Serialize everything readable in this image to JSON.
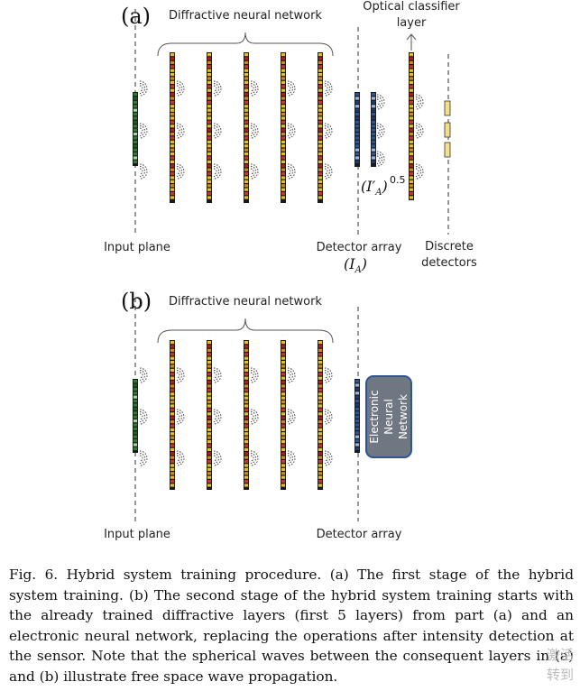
{
  "panel_a": {
    "tag": "(a)",
    "dnn_label": "Diffractive neural network",
    "classifier_label": [
      "Optical classifier",
      "layer"
    ],
    "input_label": "Input plane",
    "detector_label": "Detector array",
    "detector_symbol": "(I",
    "detector_symbol_sub": "A",
    "detector_symbol_close": ")",
    "sqrt_symbol": "(I′",
    "sqrt_symbol_sub": "A",
    "sqrt_symbol_close": ")",
    "sqrt_exponent": "0.5",
    "discrete_label": [
      "Discrete",
      "detectors"
    ]
  },
  "panel_b": {
    "tag": "(b)",
    "dnn_label": "Diffractive neural network",
    "input_label": "Input plane",
    "detector_label": "Detector array",
    "nn_label": [
      "Electronic",
      "Neural",
      "Network"
    ]
  },
  "colors": {
    "input_layer": "#2e7d32",
    "diffractive_a": "#e3c020",
    "diffractive_b": "#b71c1c",
    "detector": "#2f5597",
    "detector_light": "#9db6dd",
    "discrete_fill": "#f2e08a",
    "nn_box": "#6f7782"
  },
  "caption": "Fig. 6.    Hybrid system training procedure. (a) The first stage of the hybrid system training. (b) The second stage of the hybrid system training starts with the already trained diffractive layers (first 5 layers) from part (a) and an electronic neural network, replacing the operations after intensity detection at the sensor. Note that the spherical waves between the consequent layers in (a) and (b) illustrate free space wave propagation.",
  "watermark": [
    "激活",
    "转到"
  ]
}
